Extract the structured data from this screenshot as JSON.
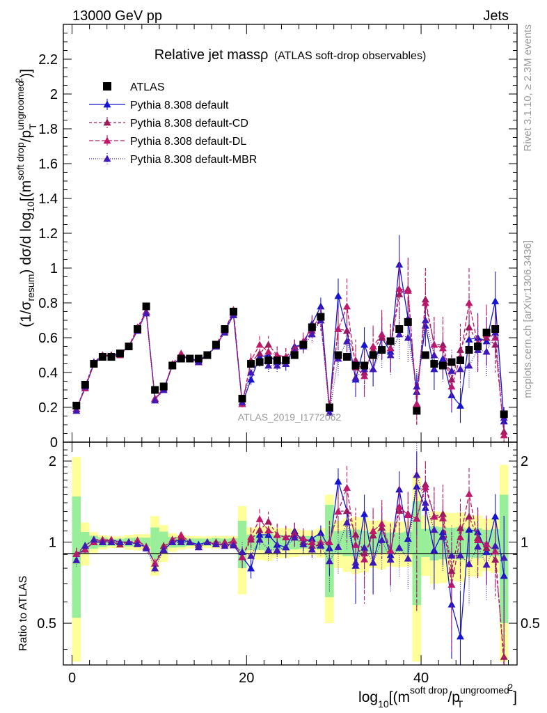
{
  "header": {
    "left": "13000 GeV pp",
    "right": "Jets"
  },
  "side_labels": {
    "rivet": "Rivet 3.1.10, ≥ 2.3M events",
    "mcplots": "mcplots.cern.ch [arXiv:1306.3436]"
  },
  "watermark": "ATLAS_2019_I1772062",
  "chart_data": {
    "type": "scatter",
    "title": "Relative jet massρ (ATLAS soft-drop observables)",
    "title_main": "Relative jet massρ",
    "title_sub": "(ATLAS soft-drop observables)",
    "xlabel": "log10[(m^soft drop/pT^ungroomed)^2]",
    "ylabel": "(1/σresum) dσ/d log10[(m^soft drop/pT^ungroomed)^2]",
    "ratio_ylabel": "Ratio to ATLAS",
    "xlim": [
      -1,
      51
    ],
    "ylim": [
      0,
      2.4
    ],
    "ratio_ylim": [
      0.35,
      2.35
    ],
    "ratio_log": true,
    "grid": false,
    "legend_position": "top-left",
    "x_ticks": [
      0,
      20,
      40
    ],
    "y_ticks": [
      0,
      0.2,
      0.4,
      0.6,
      0.8,
      1,
      1.2,
      1.4,
      1.6,
      1.8,
      2,
      2.2
    ],
    "y_tick_labels": [
      "0",
      "0.2",
      "0.4",
      "0.6",
      "0.8",
      "1",
      "1.2",
      "1.4",
      "1.6",
      "1.8",
      "2",
      "2.2"
    ],
    "ratio_ticks": [
      0.5,
      1,
      2
    ],
    "ratio_tick_labels": [
      "0.5",
      "1",
      "2"
    ],
    "x": [
      0.5,
      1.5,
      2.5,
      3.5,
      4.5,
      5.5,
      6.5,
      7.5,
      8.5,
      9.5,
      10.5,
      11.5,
      12.5,
      13.5,
      14.5,
      15.5,
      16.5,
      17.5,
      18.5,
      19.5,
      20.5,
      21.5,
      22.5,
      23.5,
      24.5,
      25.5,
      26.5,
      27.5,
      28.5,
      29.5,
      30.5,
      31.5,
      32.5,
      33.5,
      34.5,
      35.5,
      36.5,
      37.5,
      38.5,
      39.5,
      40.5,
      41.5,
      42.5,
      43.5,
      44.5,
      45.5,
      46.5,
      47.5,
      48.5,
      49.5
    ],
    "data": {
      "name": "ATLAS",
      "color": "#000000",
      "values": [
        0.21,
        0.33,
        0.45,
        0.49,
        0.49,
        0.51,
        0.55,
        0.65,
        0.78,
        0.3,
        0.32,
        0.44,
        0.48,
        0.48,
        0.48,
        0.5,
        0.56,
        0.65,
        0.75,
        0.25,
        0.45,
        0.46,
        0.47,
        0.47,
        0.47,
        0.5,
        0.56,
        0.66,
        0.72,
        0.2,
        0.5,
        0.49,
        0.44,
        0.44,
        0.5,
        0.53,
        0.58,
        0.65,
        0.69,
        0.18,
        0.5,
        0.45,
        0.44,
        0.46,
        0.47,
        0.53,
        0.55,
        0.63,
        0.65,
        0.16
      ],
      "band_inner": [
        0.2,
        0.06,
        0.05,
        0.04,
        0.03,
        0.03,
        0.04,
        0.05,
        0.06,
        0.08,
        0.06,
        0.04,
        0.04,
        0.03,
        0.03,
        0.03,
        0.04,
        0.04,
        0.05,
        0.1,
        0.06,
        0.06,
        0.07,
        0.06,
        0.06,
        0.06,
        0.06,
        0.07,
        0.09,
        0.15,
        0.1,
        0.11,
        0.1,
        0.09,
        0.09,
        0.1,
        0.1,
        0.11,
        0.13,
        0.15,
        0.12,
        0.13,
        0.12,
        0.12,
        0.13,
        0.13,
        0.14,
        0.14,
        0.15,
        0.16
      ],
      "band_outer": [
        0.45,
        0.12,
        0.08,
        0.06,
        0.05,
        0.05,
        0.07,
        0.09,
        0.11,
        0.15,
        0.1,
        0.07,
        0.06,
        0.05,
        0.05,
        0.05,
        0.06,
        0.07,
        0.08,
        0.18,
        0.12,
        0.13,
        0.14,
        0.12,
        0.12,
        0.12,
        0.12,
        0.14,
        0.18,
        0.2,
        0.2,
        0.22,
        0.21,
        0.2,
        0.2,
        0.22,
        0.22,
        0.25,
        0.26,
        0.28,
        0.25,
        0.27,
        0.26,
        0.26,
        0.27,
        0.27,
        0.28,
        0.28,
        0.3,
        0.3
      ]
    },
    "series": [
      {
        "name": "Pythia 8.308 default",
        "color": "#1515d0",
        "dash": "solid",
        "values": [
          0.19,
          0.31,
          0.45,
          0.49,
          0.5,
          0.51,
          0.55,
          0.64,
          0.75,
          0.25,
          0.3,
          0.44,
          0.49,
          0.48,
          0.47,
          0.5,
          0.55,
          0.64,
          0.73,
          0.22,
          0.36,
          0.49,
          0.5,
          0.46,
          0.45,
          0.55,
          0.56,
          0.68,
          0.78,
          0.19,
          0.84,
          0.64,
          0.36,
          0.56,
          0.42,
          0.6,
          0.52,
          1.02,
          0.71,
          0.29,
          0.67,
          0.42,
          0.48,
          0.27,
          0.21,
          0.59,
          0.6,
          0.58,
          0.81,
          0.12
        ],
        "errors": [
          0.01,
          0.01,
          0.01,
          0.01,
          0.01,
          0.01,
          0.01,
          0.01,
          0.01,
          0.01,
          0.01,
          0.01,
          0.01,
          0.01,
          0.01,
          0.01,
          0.01,
          0.01,
          0.01,
          0.02,
          0.03,
          0.04,
          0.04,
          0.04,
          0.04,
          0.04,
          0.04,
          0.05,
          0.05,
          0.04,
          0.1,
          0.12,
          0.1,
          0.1,
          0.1,
          0.12,
          0.12,
          0.17,
          0.12,
          0.1,
          0.12,
          0.12,
          0.12,
          0.1,
          0.1,
          0.14,
          0.14,
          0.14,
          0.17,
          0.08
        ]
      },
      {
        "name": "Pythia 8.308 default-CD",
        "color": "#9a1a5a",
        "dash": "4,3",
        "values": [
          0.19,
          0.32,
          0.46,
          0.5,
          0.49,
          0.5,
          0.55,
          0.64,
          0.75,
          0.25,
          0.31,
          0.44,
          0.5,
          0.48,
          0.46,
          0.5,
          0.56,
          0.65,
          0.74,
          0.22,
          0.46,
          0.51,
          0.56,
          0.5,
          0.49,
          0.54,
          0.56,
          0.64,
          0.7,
          0.2,
          0.65,
          0.64,
          0.47,
          0.4,
          0.53,
          0.6,
          0.54,
          0.85,
          0.88,
          0.22,
          0.82,
          0.56,
          0.56,
          0.36,
          0.53,
          0.66,
          0.57,
          0.6,
          0.56,
          0.06
        ],
        "errors": [
          0.01,
          0.01,
          0.01,
          0.01,
          0.01,
          0.01,
          0.01,
          0.01,
          0.01,
          0.01,
          0.01,
          0.01,
          0.01,
          0.01,
          0.01,
          0.01,
          0.01,
          0.01,
          0.01,
          0.02,
          0.04,
          0.05,
          0.05,
          0.05,
          0.05,
          0.05,
          0.05,
          0.06,
          0.06,
          0.04,
          0.12,
          0.15,
          0.12,
          0.12,
          0.12,
          0.14,
          0.14,
          0.18,
          0.18,
          0.12,
          0.18,
          0.16,
          0.16,
          0.14,
          0.15,
          0.18,
          0.16,
          0.17,
          0.16,
          0.06
        ]
      },
      {
        "name": "Pythia 8.308 default-DL",
        "color": "#c0186a",
        "dash": "6,3",
        "values": [
          0.19,
          0.31,
          0.45,
          0.5,
          0.5,
          0.51,
          0.55,
          0.66,
          0.75,
          0.25,
          0.3,
          0.45,
          0.51,
          0.48,
          0.46,
          0.5,
          0.55,
          0.64,
          0.76,
          0.22,
          0.47,
          0.56,
          0.52,
          0.5,
          0.49,
          0.53,
          0.58,
          0.66,
          0.72,
          0.2,
          0.65,
          0.78,
          0.43,
          0.38,
          0.55,
          0.62,
          0.54,
          0.88,
          0.87,
          0.22,
          0.8,
          0.56,
          0.54,
          0.32,
          0.49,
          0.8,
          0.56,
          0.62,
          0.6,
          0.04
        ],
        "errors": [
          0.01,
          0.01,
          0.01,
          0.01,
          0.01,
          0.01,
          0.01,
          0.01,
          0.01,
          0.01,
          0.01,
          0.01,
          0.01,
          0.01,
          0.01,
          0.01,
          0.01,
          0.01,
          0.01,
          0.02,
          0.04,
          0.05,
          0.05,
          0.05,
          0.05,
          0.05,
          0.05,
          0.06,
          0.06,
          0.04,
          0.12,
          0.16,
          0.12,
          0.12,
          0.12,
          0.14,
          0.14,
          0.18,
          0.18,
          0.12,
          0.18,
          0.16,
          0.16,
          0.14,
          0.15,
          0.2,
          0.16,
          0.17,
          0.16,
          0.05
        ]
      },
      {
        "name": "Pythia 8.308 default-MBR",
        "color": "#4018b8",
        "dash": "1,2",
        "values": [
          0.18,
          0.32,
          0.46,
          0.49,
          0.49,
          0.51,
          0.55,
          0.64,
          0.74,
          0.24,
          0.3,
          0.44,
          0.48,
          0.48,
          0.46,
          0.5,
          0.55,
          0.63,
          0.73,
          0.23,
          0.4,
          0.47,
          0.44,
          0.44,
          0.45,
          0.52,
          0.55,
          0.62,
          0.7,
          0.17,
          0.48,
          0.58,
          0.37,
          0.42,
          0.42,
          0.54,
          0.5,
          0.62,
          0.6,
          0.32,
          0.7,
          0.5,
          0.46,
          0.41,
          0.42,
          0.44,
          0.53,
          0.52,
          0.63,
          0.14
        ],
        "errors": [
          0.01,
          0.01,
          0.01,
          0.01,
          0.01,
          0.01,
          0.01,
          0.01,
          0.01,
          0.01,
          0.01,
          0.01,
          0.01,
          0.01,
          0.01,
          0.01,
          0.01,
          0.01,
          0.01,
          0.02,
          0.03,
          0.04,
          0.04,
          0.04,
          0.04,
          0.04,
          0.04,
          0.05,
          0.05,
          0.04,
          0.1,
          0.12,
          0.1,
          0.1,
          0.1,
          0.12,
          0.12,
          0.14,
          0.14,
          0.1,
          0.15,
          0.13,
          0.12,
          0.12,
          0.12,
          0.13,
          0.13,
          0.14,
          0.14,
          0.06
        ]
      }
    ]
  }
}
